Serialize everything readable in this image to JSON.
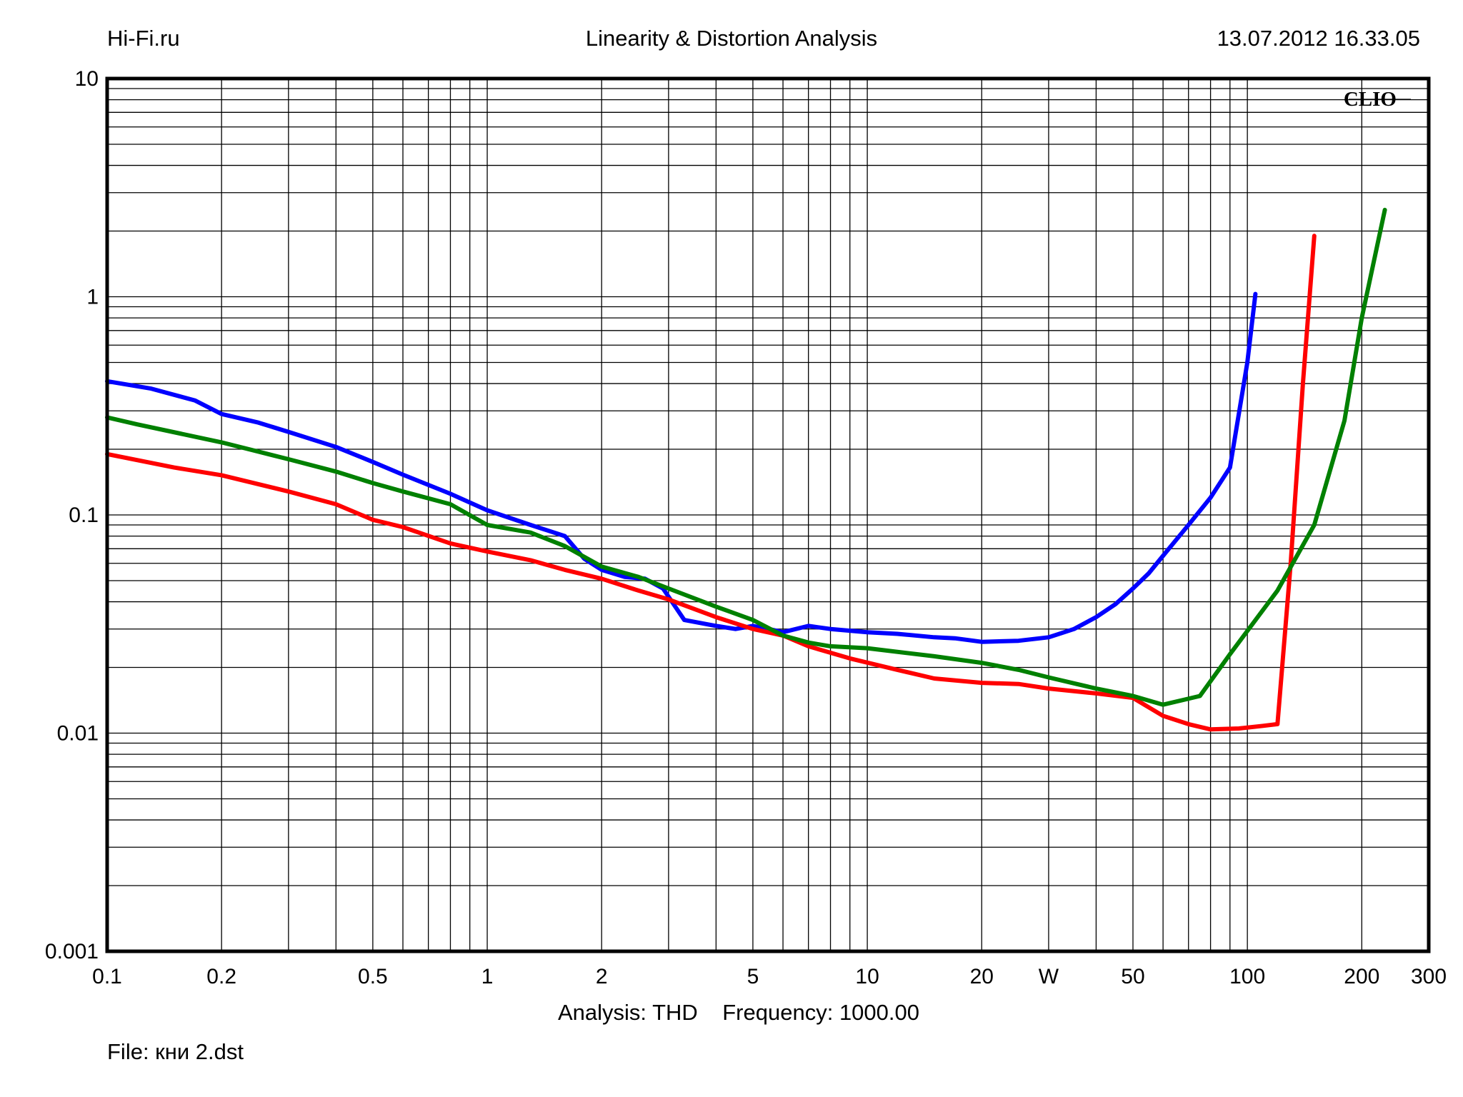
{
  "header": {
    "left": "Hi-Fi.ru",
    "center": "Linearity & Distortion Analysis",
    "right": "13.07.2012 16.33.05"
  },
  "brand": "CLIO",
  "footer": {
    "analysis_label": "Analysis: THD",
    "frequency_label": "Frequency: 1000.00",
    "file_label": "File: кни 2.dst"
  },
  "colors": {
    "background": "#ffffff",
    "axes": "#000000",
    "grid": "#000000",
    "series": [
      "#0000ff",
      "#ff0000",
      "#008000"
    ]
  },
  "chart_data": {
    "type": "line",
    "title": "Linearity & Distortion Analysis",
    "xscale": "log",
    "yscale": "log",
    "xlim": [
      0.1,
      300
    ],
    "ylim": [
      0.001,
      10
    ],
    "grid": true,
    "legend": "none",
    "xticks": [
      {
        "value": 0.1,
        "label": "0.1"
      },
      {
        "value": 0.2,
        "label": "0.2"
      },
      {
        "value": 0.5,
        "label": "0.5"
      },
      {
        "value": 1,
        "label": "1"
      },
      {
        "value": 2,
        "label": "2"
      },
      {
        "value": 5,
        "label": "5"
      },
      {
        "value": 10,
        "label": "10"
      },
      {
        "value": 20,
        "label": "20"
      },
      {
        "value": 30,
        "label": "W"
      },
      {
        "value": 50,
        "label": "50"
      },
      {
        "value": 100,
        "label": "100"
      },
      {
        "value": 200,
        "label": "200"
      },
      {
        "value": 300,
        "label": "300"
      }
    ],
    "yticks": [
      {
        "value": 10,
        "label": "10"
      },
      {
        "value": 1,
        "label": "1"
      },
      {
        "value": 0.1,
        "label": "0.1"
      },
      {
        "value": 0.01,
        "label": "0.01"
      },
      {
        "value": 0.001,
        "label": "0.001"
      }
    ],
    "series": [
      {
        "color": "#0000ff",
        "points": [
          [
            0.1,
            0.41
          ],
          [
            0.13,
            0.38
          ],
          [
            0.17,
            0.335
          ],
          [
            0.2,
            0.29
          ],
          [
            0.25,
            0.265
          ],
          [
            0.3,
            0.24
          ],
          [
            0.4,
            0.205
          ],
          [
            0.5,
            0.175
          ],
          [
            0.6,
            0.153
          ],
          [
            0.8,
            0.125
          ],
          [
            1.0,
            0.105
          ],
          [
            1.3,
            0.09
          ],
          [
            1.6,
            0.08
          ],
          [
            1.8,
            0.063
          ],
          [
            2.0,
            0.056
          ],
          [
            2.3,
            0.052
          ],
          [
            2.6,
            0.051
          ],
          [
            2.9,
            0.046
          ],
          [
            3.3,
            0.033
          ],
          [
            4.0,
            0.031
          ],
          [
            4.5,
            0.03
          ],
          [
            5.0,
            0.031
          ],
          [
            5.5,
            0.03
          ],
          [
            6.0,
            0.029
          ],
          [
            7.0,
            0.031
          ],
          [
            8.0,
            0.03
          ],
          [
            10.0,
            0.029
          ],
          [
            12.0,
            0.0285
          ],
          [
            15.0,
            0.0275
          ],
          [
            17.0,
            0.0272
          ],
          [
            20.0,
            0.0262
          ],
          [
            25.0,
            0.0265
          ],
          [
            30.0,
            0.0275
          ],
          [
            35.0,
            0.03
          ],
          [
            40.0,
            0.034
          ],
          [
            45.0,
            0.039
          ],
          [
            50.0,
            0.046
          ],
          [
            55.0,
            0.054
          ],
          [
            60.0,
            0.065
          ],
          [
            70.0,
            0.09
          ],
          [
            80.0,
            0.12
          ],
          [
            90.0,
            0.165
          ],
          [
            100.0,
            0.5
          ],
          [
            105.0,
            1.03
          ]
        ]
      },
      {
        "color": "#ff0000",
        "points": [
          [
            0.1,
            0.19
          ],
          [
            0.15,
            0.165
          ],
          [
            0.2,
            0.152
          ],
          [
            0.3,
            0.128
          ],
          [
            0.4,
            0.112
          ],
          [
            0.5,
            0.095
          ],
          [
            0.6,
            0.088
          ],
          [
            0.8,
            0.074
          ],
          [
            1.0,
            0.068
          ],
          [
            1.3,
            0.062
          ],
          [
            1.6,
            0.056
          ],
          [
            2.0,
            0.051
          ],
          [
            2.5,
            0.045
          ],
          [
            3.0,
            0.041
          ],
          [
            4.0,
            0.034
          ],
          [
            5.0,
            0.03
          ],
          [
            6.0,
            0.028
          ],
          [
            7.0,
            0.025
          ],
          [
            9.0,
            0.022
          ],
          [
            12.0,
            0.0195
          ],
          [
            15.0,
            0.0178
          ],
          [
            20.0,
            0.017
          ],
          [
            25.0,
            0.0168
          ],
          [
            30.0,
            0.016
          ],
          [
            40.0,
            0.0152
          ],
          [
            50.0,
            0.0145
          ],
          [
            60.0,
            0.012
          ],
          [
            70.0,
            0.011
          ],
          [
            80.0,
            0.0104
          ],
          [
            95.0,
            0.0105
          ],
          [
            110.0,
            0.0108
          ],
          [
            120.0,
            0.011
          ],
          [
            130.0,
            0.06
          ],
          [
            140.0,
            0.4
          ],
          [
            150.0,
            1.9
          ]
        ]
      },
      {
        "color": "#008000",
        "points": [
          [
            0.1,
            0.28
          ],
          [
            0.12,
            0.26
          ],
          [
            0.2,
            0.215
          ],
          [
            0.3,
            0.18
          ],
          [
            0.4,
            0.158
          ],
          [
            0.5,
            0.14
          ],
          [
            0.6,
            0.128
          ],
          [
            0.8,
            0.112
          ],
          [
            1.0,
            0.09
          ],
          [
            1.3,
            0.083
          ],
          [
            1.6,
            0.072
          ],
          [
            2.0,
            0.058
          ],
          [
            2.5,
            0.052
          ],
          [
            3.0,
            0.046
          ],
          [
            4.0,
            0.038
          ],
          [
            5.0,
            0.033
          ],
          [
            6.0,
            0.028
          ],
          [
            7.0,
            0.026
          ],
          [
            8.0,
            0.025
          ],
          [
            10.0,
            0.0245
          ],
          [
            15.0,
            0.0225
          ],
          [
            20.0,
            0.021
          ],
          [
            25.0,
            0.0195
          ],
          [
            30.0,
            0.018
          ],
          [
            40.0,
            0.016
          ],
          [
            50.0,
            0.0148
          ],
          [
            60.0,
            0.0135
          ],
          [
            75.0,
            0.0148
          ],
          [
            90.0,
            0.023
          ],
          [
            120.0,
            0.045
          ],
          [
            150.0,
            0.09
          ],
          [
            180.0,
            0.27
          ],
          [
            200.0,
            0.8
          ],
          [
            230.0,
            2.5
          ]
        ]
      }
    ]
  }
}
